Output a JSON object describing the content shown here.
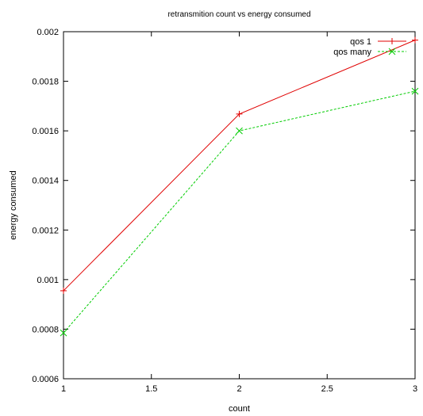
{
  "chart_data": {
    "type": "line",
    "title": "retransmition count  vs energy consumed",
    "xlabel": "count",
    "ylabel": "energy consumed",
    "xlim": [
      1,
      3
    ],
    "ylim": [
      0.0006,
      0.002
    ],
    "x_ticks": [
      1,
      1.5,
      2,
      2.5,
      3
    ],
    "x_tick_labels": [
      "1",
      "1.5",
      "2",
      "2.5",
      "3"
    ],
    "y_ticks": [
      0.0006,
      0.0008,
      0.001,
      0.0012,
      0.0014,
      0.0016,
      0.0018,
      0.002
    ],
    "y_tick_labels": [
      "0.0006",
      "0.0008",
      "0.001",
      "0.0012",
      "0.0014",
      "0.0016",
      "0.0018",
      "0.002"
    ],
    "grid": false,
    "legend_position": "top-right",
    "series": [
      {
        "name": "qos 1",
        "color": "#e00000",
        "line_style": "solid",
        "marker": "plus",
        "x": [
          1,
          2,
          3
        ],
        "values": [
          0.000955,
          0.001668,
          0.001966
        ]
      },
      {
        "name": "qos many",
        "color": "#00cc00",
        "line_style": "dashed",
        "marker": "cross",
        "x": [
          1,
          2,
          3
        ],
        "values": [
          0.000785,
          0.0016,
          0.00176
        ]
      }
    ]
  }
}
